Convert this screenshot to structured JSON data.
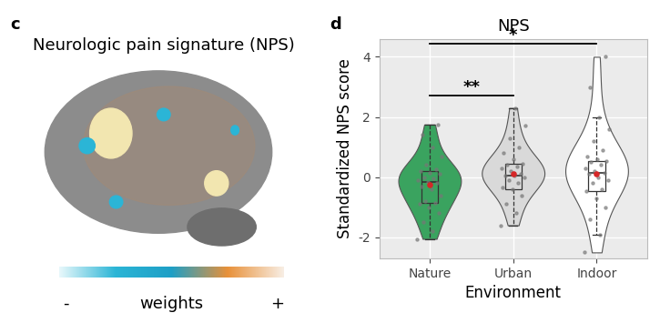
{
  "image_panel": {
    "panel_label": "c",
    "title": "Neurologic pain signature (NPS)",
    "colorbar": {
      "label": "weights",
      "min_label": "-",
      "max_label": "+",
      "colors": [
        "#e8f8fb",
        "#2bb5d6",
        "#1e9fc6",
        "#e8913a",
        "#f8eee4"
      ]
    }
  },
  "chart_data": {
    "type": "violin",
    "panel_label": "d",
    "title": "NPS",
    "x_label": "Environment",
    "y_label": "Standardized NPS score",
    "categories": [
      "Nature",
      "Urban",
      "Indoor"
    ],
    "colors": [
      "#3aa35f",
      "#d9d9d9",
      "#ffffff"
    ],
    "values": [
      [
        -2.05,
        -1.8,
        -1.5,
        -1.2,
        -1.0,
        -0.9,
        -0.85,
        -0.8,
        -0.6,
        -0.4,
        -0.3,
        -0.2,
        -0.15,
        -0.1,
        -0.05,
        0.0,
        0.1,
        0.15,
        0.2,
        0.25,
        0.4,
        0.7,
        1.0,
        1.4,
        1.75
      ],
      [
        -1.6,
        -1.2,
        -0.9,
        -0.6,
        -0.4,
        -0.35,
        -0.2,
        -0.1,
        0.0,
        0.05,
        0.05,
        0.1,
        0.2,
        0.3,
        0.35,
        0.4,
        0.45,
        0.6,
        0.8,
        1.0,
        1.3,
        1.7,
        2.3
      ],
      [
        -2.5,
        -1.9,
        -1.4,
        -1.0,
        -0.7,
        -0.45,
        -0.4,
        -0.2,
        -0.1,
        0.0,
        0.1,
        0.15,
        0.2,
        0.3,
        0.4,
        0.5,
        0.55,
        0.6,
        0.7,
        0.9,
        1.2,
        1.6,
        2.0,
        3.0,
        4.0
      ]
    ],
    "box": [
      {
        "whislo": -2.05,
        "q1": -0.85,
        "med": -0.15,
        "q3": 0.2,
        "whishi": 1.75,
        "mean": -0.25
      },
      {
        "whislo": -1.6,
        "q1": -0.4,
        "med": 0.05,
        "q3": 0.45,
        "whishi": 2.3,
        "mean": 0.1
      },
      {
        "whislo": -1.9,
        "q1": -0.45,
        "med": 0.15,
        "q3": 0.55,
        "whishi": 2.0,
        "mean": 0.1
      }
    ],
    "significance": [
      {
        "from": "Nature",
        "to": "Urban",
        "label": "**",
        "y": 2.7
      },
      {
        "from": "Nature",
        "to": "Indoor",
        "label": "*",
        "y": 4.45
      }
    ],
    "ylim": [
      -2.7,
      4.6
    ],
    "yticks": [
      -2,
      0,
      2,
      4
    ],
    "grid": true
  }
}
